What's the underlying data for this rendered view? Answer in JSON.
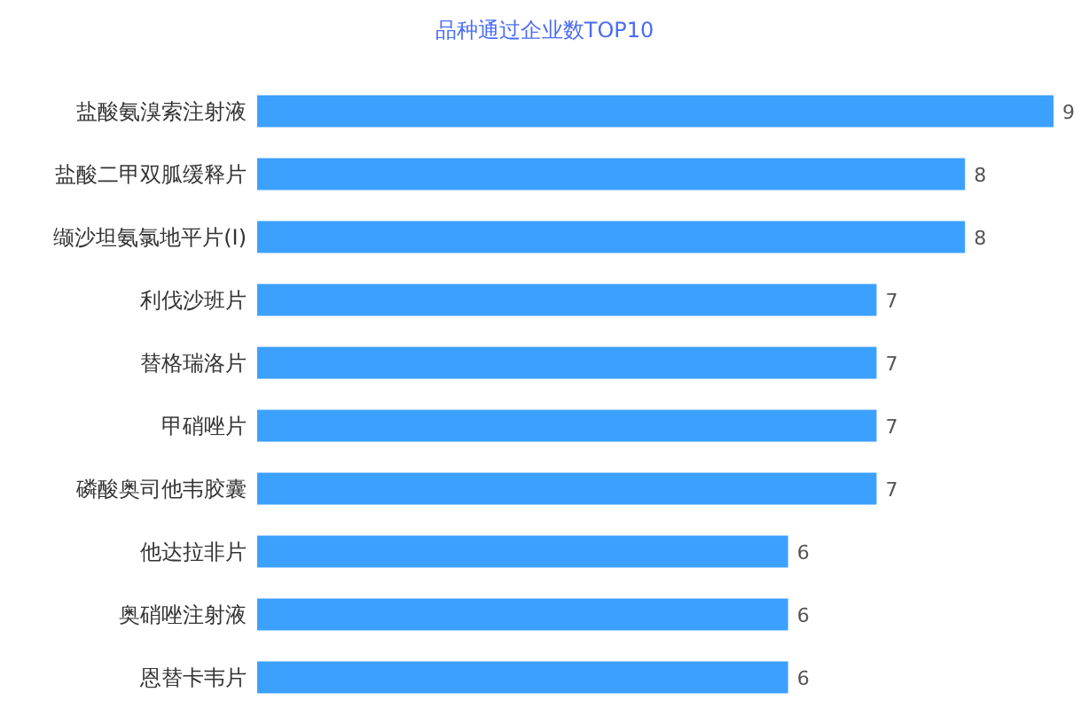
{
  "chart_data": {
    "type": "bar",
    "orientation": "horizontal",
    "title": "品种通过企业数TOP10",
    "categories": [
      "盐酸氨溴索注射液",
      "盐酸二甲双胍缓释片",
      "缬沙坦氨氯地平片(Ⅰ)",
      "利伐沙班片",
      "替格瑞洛片",
      "甲硝唑片",
      "磷酸奥司他韦胶囊",
      "他达拉非片",
      "奥硝唑注射液",
      "恩替卡韦片"
    ],
    "values": [
      9,
      8,
      8,
      7,
      7,
      7,
      7,
      6,
      6,
      6
    ],
    "color": "#3ca0ff",
    "data_labels": true
  }
}
